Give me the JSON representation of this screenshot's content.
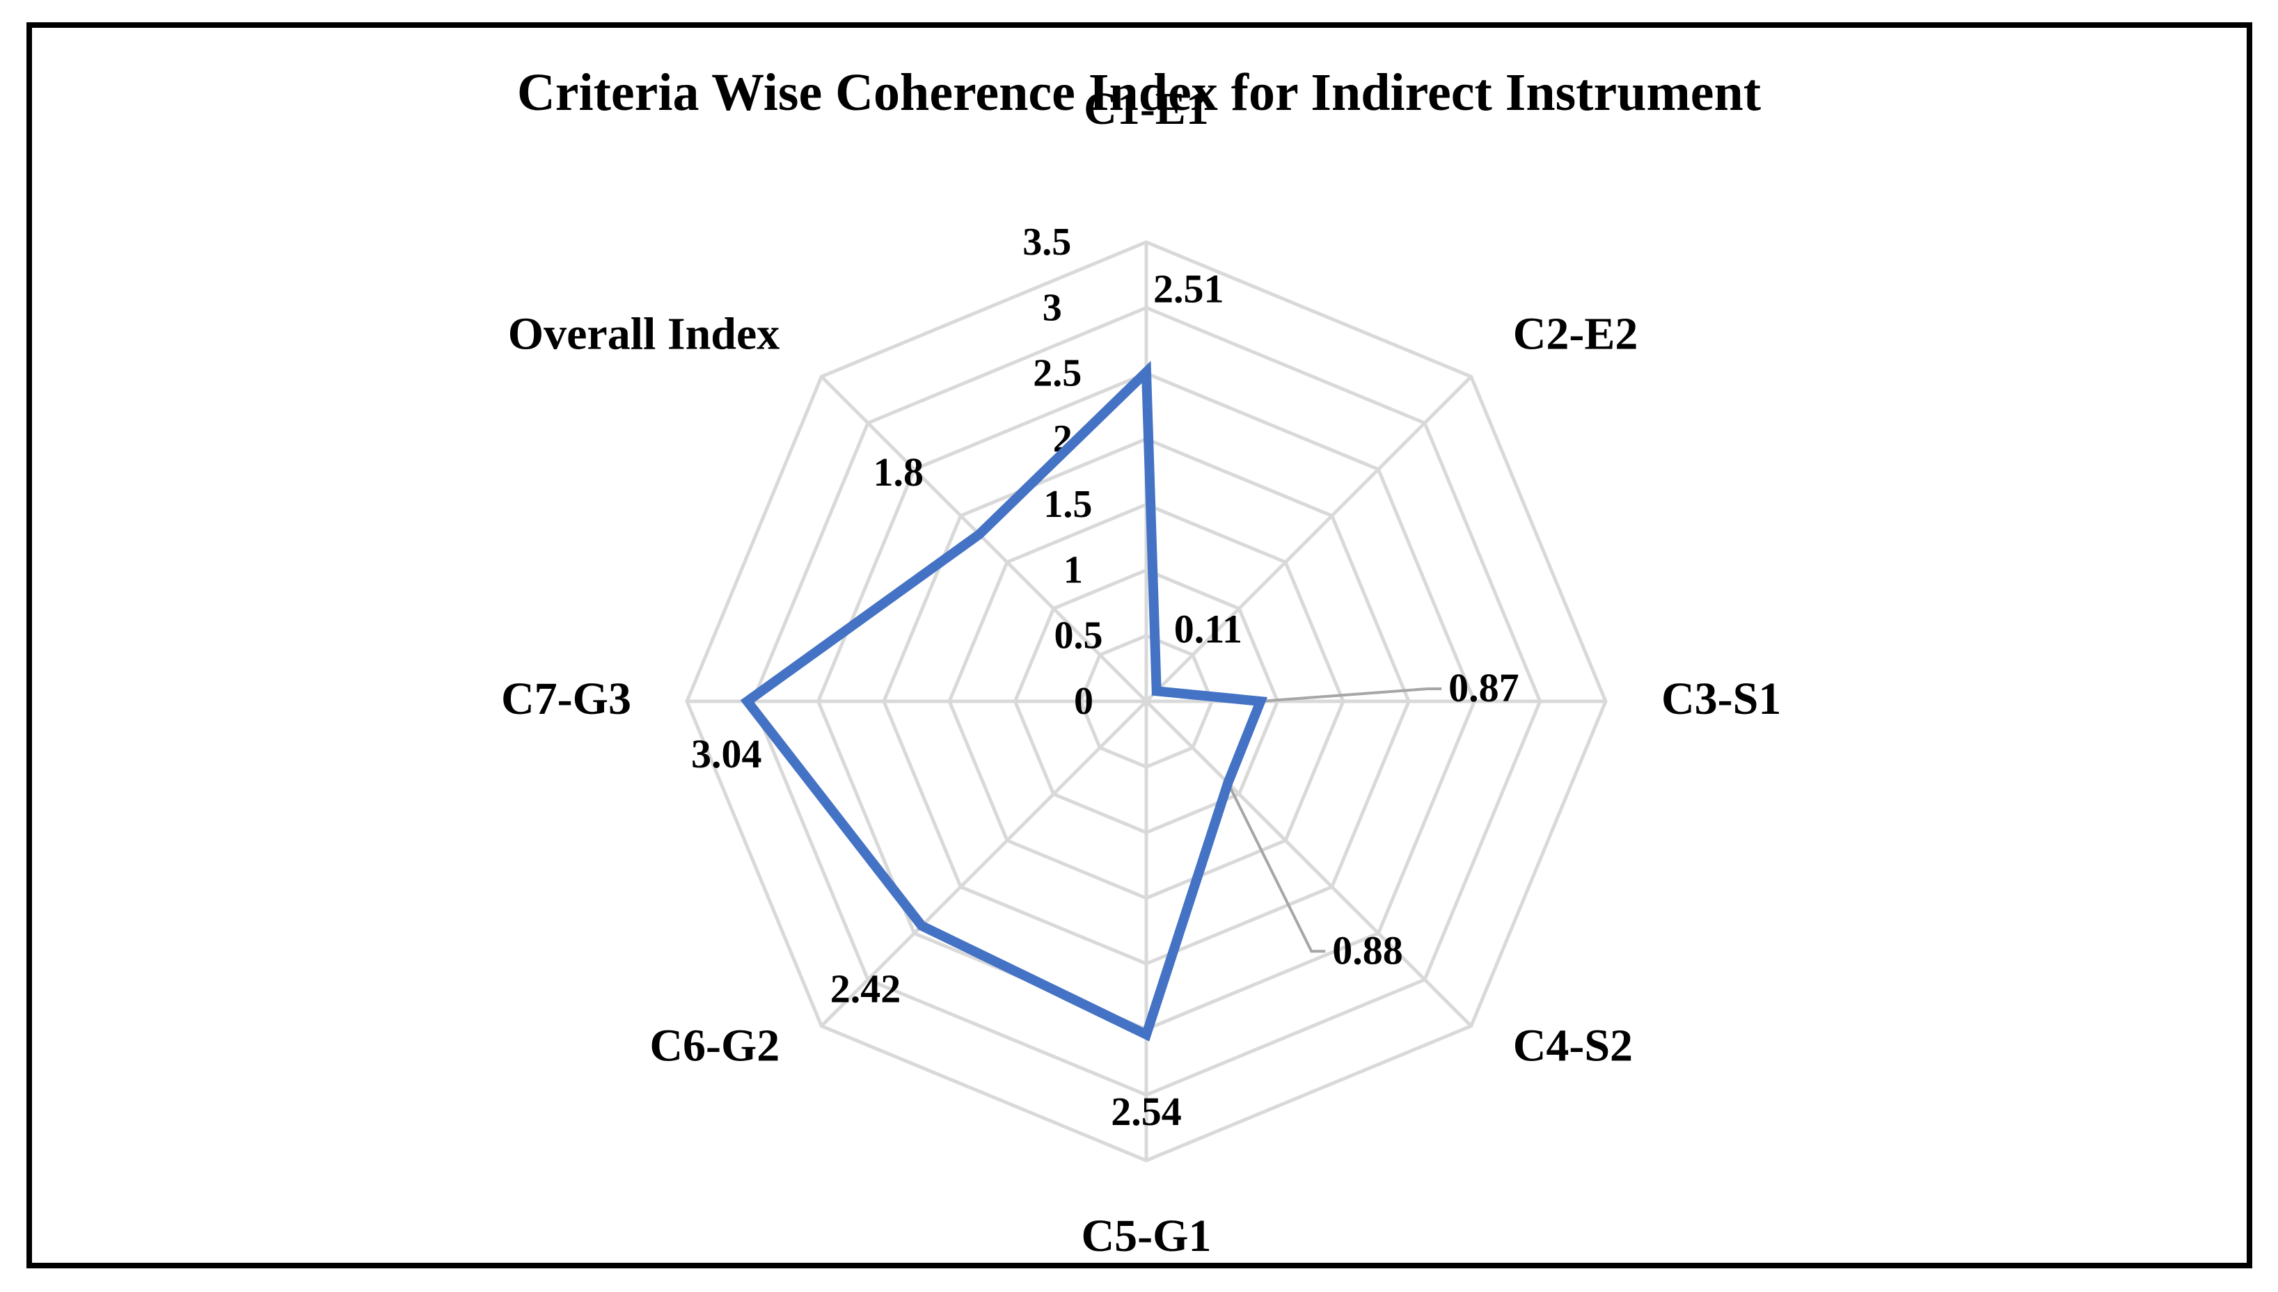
{
  "chart_data": {
    "type": "radar",
    "title": "Criteria Wise Coherence Index for Indirect Instrument",
    "categories": [
      "C1-E1",
      "C2-E2",
      "C3-S1",
      "C4-S2",
      "C5-G1",
      "C6-G2",
      "C7-G3",
      "Overall Index"
    ],
    "series": [
      {
        "values": [
          2.51,
          0.11,
          0.87,
          0.88,
          2.54,
          2.42,
          3.04,
          1.8
        ]
      }
    ],
    "data_labels": [
      "2.51",
      "0.11",
      "0.87",
      "0.88",
      "2.54",
      "2.42",
      "3.04",
      "1.8"
    ],
    "radial_ticks": [
      "0",
      "0.5",
      "1",
      "1.5",
      "2",
      "2.5",
      "3",
      "3.5"
    ],
    "rlim": [
      0,
      3.5
    ],
    "grid": true,
    "legend": "none"
  },
  "colors": {
    "series": "#4472C4",
    "grid": "#D9D9D9",
    "leader": "#A6A6A6",
    "frame": "#000000"
  }
}
